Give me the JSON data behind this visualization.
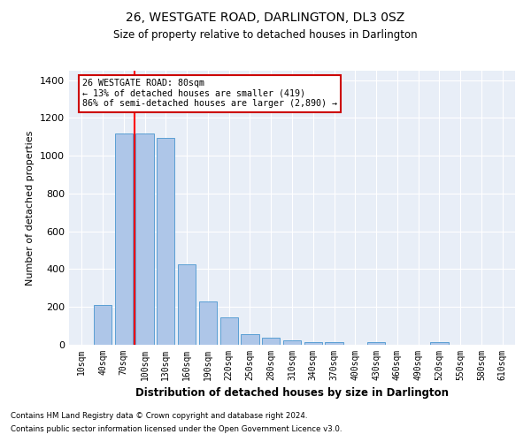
{
  "title": "26, WESTGATE ROAD, DARLINGTON, DL3 0SZ",
  "subtitle": "Size of property relative to detached houses in Darlington",
  "xlabel": "Distribution of detached houses by size in Darlington",
  "ylabel": "Number of detached properties",
  "footnote1": "Contains HM Land Registry data © Crown copyright and database right 2024.",
  "footnote2": "Contains public sector information licensed under the Open Government Licence v3.0.",
  "bar_labels": [
    "10sqm",
    "40sqm",
    "70sqm",
    "100sqm",
    "130sqm",
    "160sqm",
    "190sqm",
    "220sqm",
    "250sqm",
    "280sqm",
    "310sqm",
    "340sqm",
    "370sqm",
    "400sqm",
    "430sqm",
    "460sqm",
    "490sqm",
    "520sqm",
    "550sqm",
    "580sqm",
    "610sqm"
  ],
  "bar_values": [
    0,
    210,
    1120,
    1120,
    1095,
    425,
    230,
    145,
    55,
    37,
    22,
    13,
    16,
    0,
    13,
    0,
    0,
    13,
    0,
    0,
    0
  ],
  "bar_color": "#aec6e8",
  "bar_edge_color": "#5a9fd4",
  "background_color": "#e8eef7",
  "grid_color": "#ffffff",
  "annotation_line1": "26 WESTGATE ROAD: 80sqm",
  "annotation_line2": "← 13% of detached houses are smaller (419)",
  "annotation_line3": "86% of semi-detached houses are larger (2,890) →",
  "annotation_box_color": "#ffffff",
  "annotation_box_edge": "#cc0000",
  "red_line_x": 2.5,
  "ylim": [
    0,
    1450
  ],
  "yticks": [
    0,
    200,
    400,
    600,
    800,
    1000,
    1200,
    1400
  ]
}
